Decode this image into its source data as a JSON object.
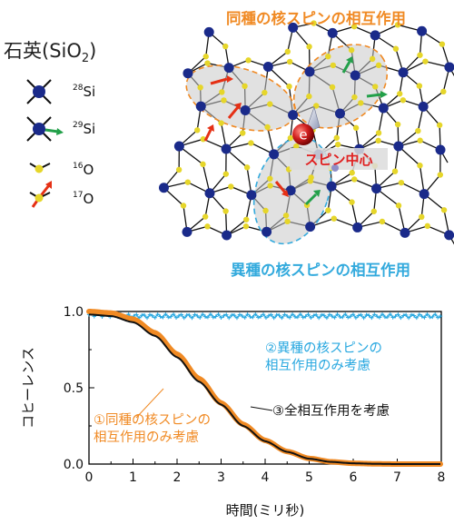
{
  "diagram": {
    "legend_title": "石英(SiO",
    "legend_title_sub": "2",
    "legend_title_end": ")",
    "legend_items": [
      {
        "mass": "28",
        "element": "Si"
      },
      {
        "mass": "29",
        "element": "Si"
      },
      {
        "mass": "16",
        "element": "O"
      },
      {
        "mass": "17",
        "element": "O"
      }
    ],
    "label_homo": "同種の核スピンの相互作用",
    "label_hetero": "異種の核スピンの相互作用",
    "label_center": "スピン中心",
    "electron_symbol": "e",
    "colors": {
      "homo": "#f08a24",
      "hetero": "#33aadd",
      "center": "#e02020",
      "si": "#1a2a8a",
      "o": "#e6d62a"
    }
  },
  "chart_data": {
    "type": "line",
    "xlabel": "時間(ミリ秒)",
    "ylabel": "コヒーレンス",
    "xlim": [
      0,
      8
    ],
    "ylim": [
      0,
      1
    ],
    "xticks": [
      "0",
      "1",
      "2",
      "3",
      "4",
      "5",
      "6",
      "7",
      "8"
    ],
    "yticks": [
      "0.0",
      "0.5",
      "1.0"
    ],
    "series": [
      {
        "name": "②異種の核スピンの相互作用のみ考慮",
        "color": "#29a8e0",
        "x": [
          0,
          1,
          2,
          3,
          4,
          5,
          6,
          7,
          8
        ],
        "y": [
          0.98,
          0.97,
          0.97,
          0.97,
          0.97,
          0.97,
          0.97,
          0.97,
          0.97
        ]
      },
      {
        "name": "①同種の核スピンの相互作用のみ考慮",
        "color": "#f08a24",
        "x": [
          0,
          0.5,
          1,
          1.5,
          2,
          2.5,
          3,
          3.5,
          4,
          4.5,
          5,
          5.5,
          6,
          6.5,
          7,
          8
        ],
        "y": [
          1.0,
          0.99,
          0.95,
          0.86,
          0.72,
          0.56,
          0.4,
          0.26,
          0.155,
          0.082,
          0.037,
          0.015,
          0.005,
          0.0015,
          0.0,
          0.0
        ]
      },
      {
        "name": "③全相互作用を考慮",
        "color": "#111111",
        "x": [
          0,
          0.5,
          1,
          1.5,
          2,
          2.5,
          3,
          3.5,
          4,
          4.5,
          5,
          5.5,
          6,
          6.5,
          7,
          8
        ],
        "y": [
          0.98,
          0.97,
          0.93,
          0.84,
          0.7,
          0.54,
          0.39,
          0.25,
          0.15,
          0.08,
          0.035,
          0.014,
          0.005,
          0.0015,
          0.0,
          0.0
        ]
      }
    ],
    "annotations": [
      {
        "lines": [
          "②異種の核スピンの",
          "相互作用のみ考慮"
        ],
        "color": "#29a8e0"
      },
      {
        "lines": [
          "③全相互作用を考慮"
        ],
        "color": "#111111"
      },
      {
        "lines": [
          "①同種の核スピンの",
          "相互作用のみ考慮"
        ],
        "color": "#f08a24"
      }
    ]
  }
}
